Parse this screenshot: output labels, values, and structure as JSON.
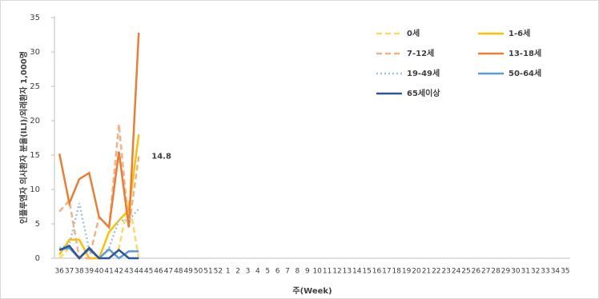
{
  "chart_data": {
    "type": "line",
    "y_label": "인플루엔자 의사환자 분율(ILI)/외래환자 1,000명",
    "x_label": "주(Week)",
    "categories": [
      "36",
      "37",
      "38",
      "39",
      "40",
      "41",
      "42",
      "43",
      "44",
      "45",
      "46",
      "47",
      "48",
      "49",
      "50",
      "51",
      "52",
      "1",
      "2",
      "3",
      "4",
      "5",
      "6",
      "7",
      "8",
      "9",
      "10",
      "11",
      "12",
      "13",
      "14",
      "15",
      "16",
      "17",
      "18",
      "19",
      "20",
      "21",
      "22",
      "23",
      "24",
      "25",
      "26",
      "27",
      "28",
      "29",
      "30",
      "31",
      "32",
      "33",
      "34",
      "35"
    ],
    "ylim": [
      0,
      35
    ],
    "yticks": [
      0,
      5,
      10,
      15,
      20,
      25,
      30,
      35
    ],
    "legend": "top-right",
    "series": [
      {
        "name": "0세",
        "color": "#ffd966",
        "dash": "dashed",
        "values": [
          0,
          1.5,
          0,
          0,
          0,
          0,
          1.5,
          8.5,
          0,
          null,
          null,
          null,
          null,
          null,
          null,
          null,
          null,
          null,
          null,
          null,
          null,
          null,
          null,
          null,
          null,
          null,
          null,
          null,
          null,
          null,
          null,
          null,
          null,
          null,
          null,
          null,
          null,
          null,
          null,
          null,
          null,
          null,
          null,
          null,
          null,
          null,
          null,
          null,
          null,
          null,
          null,
          null
        ]
      },
      {
        "name": "1-6세",
        "color": "#ffc000",
        "dash": "solid",
        "values": [
          0.5,
          2.7,
          2.7,
          0,
          0,
          3.8,
          5.5,
          7,
          18,
          null,
          null,
          null,
          null,
          null,
          null,
          null,
          null,
          null,
          null,
          null,
          null,
          null,
          null,
          null,
          null,
          null,
          null,
          null,
          null,
          null,
          null,
          null,
          null,
          null,
          null,
          null,
          null,
          null,
          null,
          null,
          null,
          null,
          null,
          null,
          null,
          null,
          null,
          null,
          null,
          null,
          null,
          null
        ]
      },
      {
        "name": "7-12세",
        "color": "#f4b183",
        "dash": "dashed",
        "values": [
          6.8,
          8.4,
          0,
          0,
          6,
          4.5,
          19.5,
          4.5,
          14.8,
          null,
          null,
          null,
          null,
          null,
          null,
          null,
          null,
          null,
          null,
          null,
          null,
          null,
          null,
          null,
          null,
          null,
          null,
          null,
          null,
          null,
          null,
          null,
          null,
          null,
          null,
          null,
          null,
          null,
          null,
          null,
          null,
          null,
          null,
          null,
          null,
          null,
          null,
          null,
          null,
          null,
          null,
          null
        ],
        "value_labels": [
          null,
          null,
          null,
          null,
          null,
          null,
          null,
          null,
          "14.8",
          null,
          null,
          null,
          null,
          null,
          null,
          null,
          null,
          null,
          null,
          null,
          null,
          null,
          null,
          null,
          null,
          null,
          null,
          null,
          null,
          null,
          null,
          null,
          null,
          null,
          null,
          null,
          null,
          null,
          null,
          null,
          null,
          null,
          null,
          null,
          null,
          null,
          null,
          null,
          null,
          null,
          null,
          null
        ]
      },
      {
        "name": "13-18세",
        "color": "#ed7d31",
        "dash": "solid",
        "values": [
          15.2,
          8,
          11.5,
          12.4,
          6,
          4.5,
          15.5,
          4.5,
          32.8,
          null,
          null,
          null,
          null,
          null,
          null,
          null,
          null,
          null,
          null,
          null,
          null,
          null,
          null,
          null,
          null,
          null,
          null,
          null,
          null,
          null,
          null,
          null,
          null,
          null,
          null,
          null,
          null,
          null,
          null,
          null,
          null,
          null,
          null,
          null,
          null,
          null,
          null,
          null,
          null,
          null,
          null,
          null
        ]
      },
      {
        "name": "19-49세",
        "color": "#9dc3e6",
        "dash": "dotted",
        "values": [
          1.5,
          2,
          8,
          1.2,
          0,
          1.5,
          5.5,
          5.5,
          7.2,
          null,
          null,
          null,
          null,
          null,
          null,
          null,
          null,
          null,
          null,
          null,
          null,
          null,
          null,
          null,
          null,
          null,
          null,
          null,
          null,
          null,
          null,
          null,
          null,
          null,
          null,
          null,
          null,
          null,
          null,
          null,
          null,
          null,
          null,
          null,
          null,
          null,
          null,
          null,
          null,
          null,
          null,
          null
        ]
      },
      {
        "name": "50-64세",
        "color": "#5b9bd5",
        "dash": "solid",
        "values": [
          1.2,
          1.5,
          0,
          1.3,
          0,
          1.3,
          0,
          1,
          1,
          null,
          null,
          null,
          null,
          null,
          null,
          null,
          null,
          null,
          null,
          null,
          null,
          null,
          null,
          null,
          null,
          null,
          null,
          null,
          null,
          null,
          null,
          null,
          null,
          null,
          null,
          null,
          null,
          null,
          null,
          null,
          null,
          null,
          null,
          null,
          null,
          null,
          null,
          null,
          null,
          null,
          null,
          null
        ]
      },
      {
        "name": "65세이상",
        "color": "#2f5597",
        "dash": "solid",
        "values": [
          1.2,
          1.8,
          0,
          1.5,
          0,
          0,
          1.2,
          0,
          0,
          null,
          null,
          null,
          null,
          null,
          null,
          null,
          null,
          null,
          null,
          null,
          null,
          null,
          null,
          null,
          null,
          null,
          null,
          null,
          null,
          null,
          null,
          null,
          null,
          null,
          null,
          null,
          null,
          null,
          null,
          null,
          null,
          null,
          null,
          null,
          null,
          null,
          null,
          null,
          null,
          null,
          null,
          null
        ]
      }
    ]
  }
}
